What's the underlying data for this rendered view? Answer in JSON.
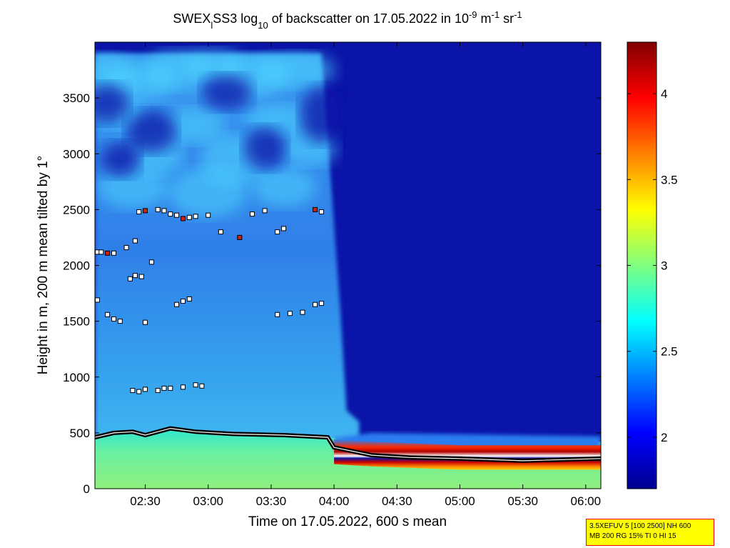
{
  "chart_data": {
    "type": "heatmap",
    "title": {
      "part1": "SWEX",
      "sub1": "l",
      "part2": "SS3 log",
      "sub2": "10",
      "part3": " of backscatter on 17.05.2022 in 10",
      "sup1": "-9",
      "part4": " m",
      "sup2": "-1",
      "part5": " sr",
      "sup3": "-1"
    },
    "xlabel": "Time on 17.05.2022, 600 s mean",
    "ylabel": "Height in m, 200 m mean tilted by 1°",
    "x_range_hours": [
      2.1,
      6.12
    ],
    "y_range_m": [
      0,
      4000
    ],
    "x_ticks": [
      {
        "value": 2.5,
        "label": "02:30"
      },
      {
        "value": 3.0,
        "label": "03:00"
      },
      {
        "value": 3.5,
        "label": "03:30"
      },
      {
        "value": 4.0,
        "label": "04:00"
      },
      {
        "value": 4.5,
        "label": "04:30"
      },
      {
        "value": 5.0,
        "label": "05:00"
      },
      {
        "value": 5.5,
        "label": "05:30"
      },
      {
        "value": 6.0,
        "label": "06:00"
      }
    ],
    "y_ticks": [
      {
        "value": 0,
        "label": "0"
      },
      {
        "value": 500,
        "label": "500"
      },
      {
        "value": 1000,
        "label": "1000"
      },
      {
        "value": 1500,
        "label": "1500"
      },
      {
        "value": 2000,
        "label": "2000"
      },
      {
        "value": 2500,
        "label": "2500"
      },
      {
        "value": 3000,
        "label": "3000"
      },
      {
        "value": 3500,
        "label": "3500"
      }
    ],
    "colorbar": {
      "range": [
        1.7,
        4.3
      ],
      "ticks": [
        {
          "value": 2,
          "label": "2"
        },
        {
          "value": 2.5,
          "label": "2.5"
        },
        {
          "value": 3,
          "label": "3"
        },
        {
          "value": 3.5,
          "label": "3.5"
        },
        {
          "value": 4,
          "label": "4"
        }
      ],
      "colormap": "jet"
    },
    "field": {
      "mixed_layer_top_m": [
        [
          2.1,
          460
        ],
        [
          2.25,
          500
        ],
        [
          2.4,
          510
        ],
        [
          2.5,
          480
        ],
        [
          2.7,
          540
        ],
        [
          2.9,
          510
        ],
        [
          3.2,
          490
        ],
        [
          3.6,
          480
        ],
        [
          3.95,
          460
        ],
        [
          4.0,
          455
        ],
        [
          4.25,
          420
        ],
        [
          6.12,
          420
        ]
      ],
      "aerosol_layer_top_m": [
        [
          2.1,
          3900
        ],
        [
          3.9,
          3900
        ],
        [
          4.05,
          1600
        ],
        [
          4.1,
          700
        ],
        [
          4.2,
          600
        ]
      ],
      "stable_boundary_layer_m": [
        [
          4.0,
          350
        ],
        [
          4.3,
          330
        ],
        [
          5.0,
          300
        ],
        [
          6.12,
          300
        ]
      ]
    },
    "detections": {
      "cloud_base_points": [
        [
          2.12,
          2120
        ],
        [
          2.15,
          2120
        ],
        [
          2.2,
          2110
        ],
        [
          2.25,
          2110
        ],
        [
          2.35,
          2160
        ],
        [
          2.42,
          2220
        ],
        [
          2.45,
          2480
        ],
        [
          2.5,
          2490
        ],
        [
          2.6,
          2500
        ],
        [
          2.65,
          2490
        ],
        [
          2.7,
          2460
        ],
        [
          2.75,
          2450
        ],
        [
          2.8,
          2420
        ],
        [
          2.85,
          2430
        ],
        [
          2.9,
          2440
        ],
        [
          3.0,
          2450
        ],
        [
          3.1,
          2300
        ],
        [
          3.25,
          2250
        ],
        [
          3.35,
          2460
        ],
        [
          3.45,
          2490
        ],
        [
          3.55,
          2300
        ],
        [
          3.6,
          2330
        ],
        [
          3.85,
          2500
        ],
        [
          3.9,
          2480
        ]
      ],
      "mid_level_points": [
        [
          2.12,
          1690
        ],
        [
          2.2,
          1560
        ],
        [
          2.25,
          1520
        ],
        [
          2.3,
          1500
        ],
        [
          2.38,
          1880
        ],
        [
          2.42,
          1910
        ],
        [
          2.47,
          1900
        ],
        [
          2.55,
          2030
        ],
        [
          2.5,
          1490
        ],
        [
          2.75,
          1650
        ],
        [
          2.8,
          1680
        ],
        [
          2.85,
          1700
        ],
        [
          3.55,
          1560
        ],
        [
          3.65,
          1570
        ],
        [
          3.75,
          1580
        ],
        [
          3.85,
          1650
        ],
        [
          3.9,
          1660
        ]
      ],
      "low_level_points": [
        [
          2.4,
          880
        ],
        [
          2.45,
          870
        ],
        [
          2.5,
          890
        ],
        [
          2.6,
          880
        ],
        [
          2.65,
          900
        ],
        [
          2.7,
          900
        ],
        [
          2.8,
          910
        ],
        [
          2.9,
          930
        ],
        [
          2.95,
          920
        ]
      ],
      "boundary_layer_line": [
        [
          2.1,
          460
        ],
        [
          2.25,
          500
        ],
        [
          2.4,
          510
        ],
        [
          2.5,
          480
        ],
        [
          2.7,
          540
        ],
        [
          2.9,
          510
        ],
        [
          3.2,
          490
        ],
        [
          3.6,
          480
        ],
        [
          3.95,
          460
        ],
        [
          4.0,
          370
        ],
        [
          4.3,
          300
        ],
        [
          4.6,
          280
        ],
        [
          5.0,
          270
        ],
        [
          5.5,
          250
        ],
        [
          6.12,
          270
        ]
      ]
    }
  },
  "info_box": {
    "line1": "3.5XEFUV 5 [100 2500] NH 600",
    "line2": "MB 200 RG 15% TI 0 HI 15"
  }
}
